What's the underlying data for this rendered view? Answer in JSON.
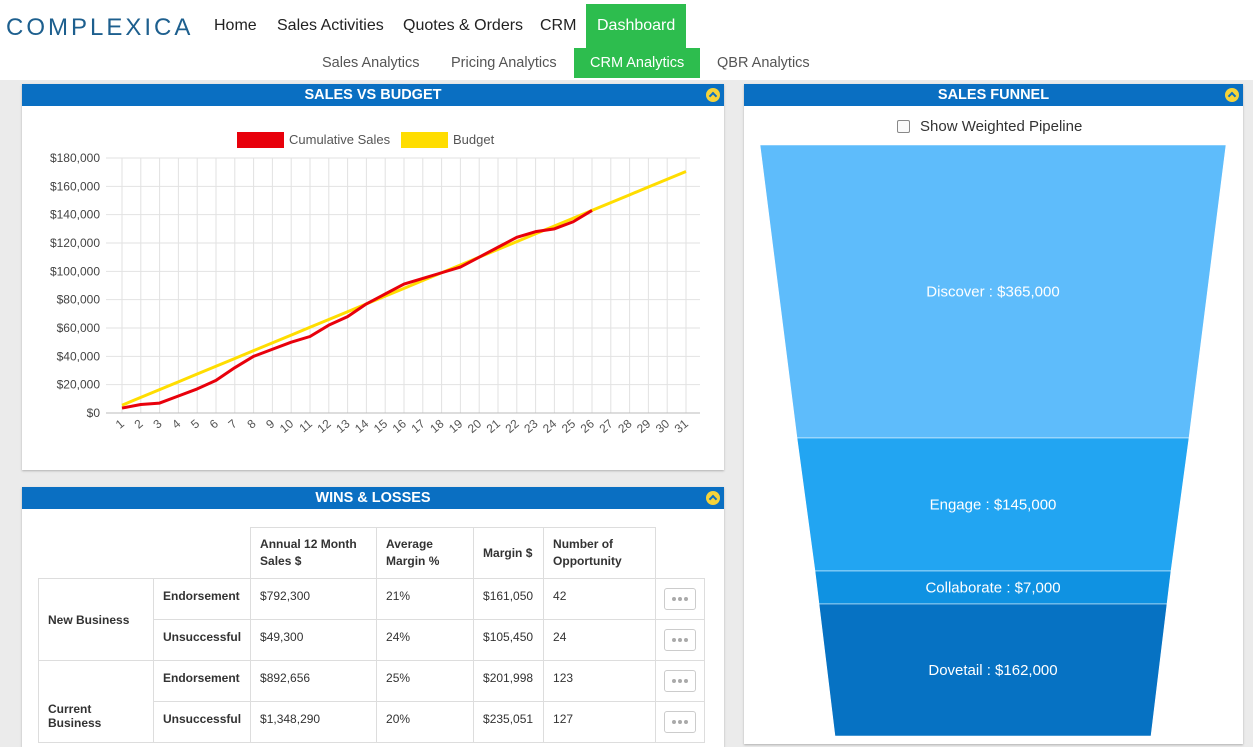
{
  "header": {
    "logo": "COMPLEXICA",
    "nav": [
      "Home",
      "Sales Activities",
      "Quotes & Orders",
      "CRM",
      "Dashboard"
    ],
    "nav_active": 4,
    "subnav": [
      "Sales Analytics",
      "Pricing Analytics",
      "CRM Analytics",
      "QBR Analytics"
    ],
    "subnav_active": 2
  },
  "sales_chart": {
    "type": "line",
    "title": "SALES VS BUDGET",
    "categories": [
      1,
      2,
      3,
      4,
      5,
      6,
      7,
      8,
      9,
      10,
      11,
      12,
      13,
      14,
      15,
      16,
      17,
      18,
      19,
      20,
      21,
      22,
      23,
      24,
      25,
      26,
      27,
      28,
      29,
      30,
      31
    ],
    "series": [
      {
        "name": "Cumulative Sales",
        "color": "#e8000b",
        "values": [
          3500,
          6000,
          7000,
          12000,
          17000,
          23000,
          32000,
          40000,
          45000,
          50000,
          54000,
          62000,
          68000,
          77000,
          84000,
          91000,
          95000,
          99000,
          103000,
          110000,
          117000,
          124000,
          128000,
          130000,
          135000,
          143000,
          null,
          null,
          null,
          null,
          null
        ]
      },
      {
        "name": "Budget",
        "color": "#ffdd00",
        "values": [
          5500,
          11000,
          16500,
          22000,
          27500,
          33000,
          38500,
          44000,
          49500,
          55000,
          60500,
          66000,
          71500,
          77000,
          82500,
          88000,
          93500,
          99000,
          104500,
          110000,
          115500,
          121000,
          126500,
          132000,
          137500,
          143000,
          148500,
          154000,
          159500,
          165000,
          170500
        ]
      }
    ],
    "ylim": [
      0,
      180000
    ],
    "yticks": [
      {
        "value": 0,
        "label": "$0"
      },
      {
        "value": 20000,
        "label": "$20,000"
      },
      {
        "value": 40000,
        "label": "$40,000"
      },
      {
        "value": 60000,
        "label": "$60,000"
      },
      {
        "value": 80000,
        "label": "$80,000"
      },
      {
        "value": 100000,
        "label": "$100,000"
      },
      {
        "value": 120000,
        "label": "$120,000"
      },
      {
        "value": 140000,
        "label": "$140,000"
      },
      {
        "value": 160000,
        "label": "$160,000"
      },
      {
        "value": 180000,
        "label": "$180,000"
      }
    ],
    "grid": true
  },
  "wins_losses": {
    "title": "WINS & LOSSES",
    "columns": [
      "Annual 12 Month Sales $",
      "Average Margin %",
      "Margin $",
      "Number of Opportunity"
    ],
    "groups": [
      {
        "name": "New Business",
        "rows": [
          {
            "label": "Endorsement",
            "cells": [
              "$792,300",
              "21%",
              "$161,050",
              "42"
            ]
          },
          {
            "label": "Unsuccessful",
            "cells": [
              "$49,300",
              "24%",
              "$105,450",
              "24"
            ]
          }
        ]
      },
      {
        "name": "Current Business",
        "rows": [
          {
            "label": "Endorsement",
            "cells": [
              "$892,656",
              "25%",
              "$201,998",
              "123"
            ]
          },
          {
            "label": "Unsuccessful",
            "cells": [
              "$1,348,290",
              "20%",
              "$235,051",
              "127"
            ]
          }
        ]
      }
    ]
  },
  "sales_funnel": {
    "title": "SALES FUNNEL",
    "checkbox": "Show Weighted Pipeline",
    "stages": [
      {
        "label": "Discover : $365,000",
        "color": "#5ebcfb"
      },
      {
        "label": "Engage : $145,000",
        "color": "#22a5f2"
      },
      {
        "label": "Collaborate : $7,000",
        "color": "#0f92e2"
      },
      {
        "label": "Dovetail : $162,000",
        "color": "#0672c3"
      }
    ]
  }
}
